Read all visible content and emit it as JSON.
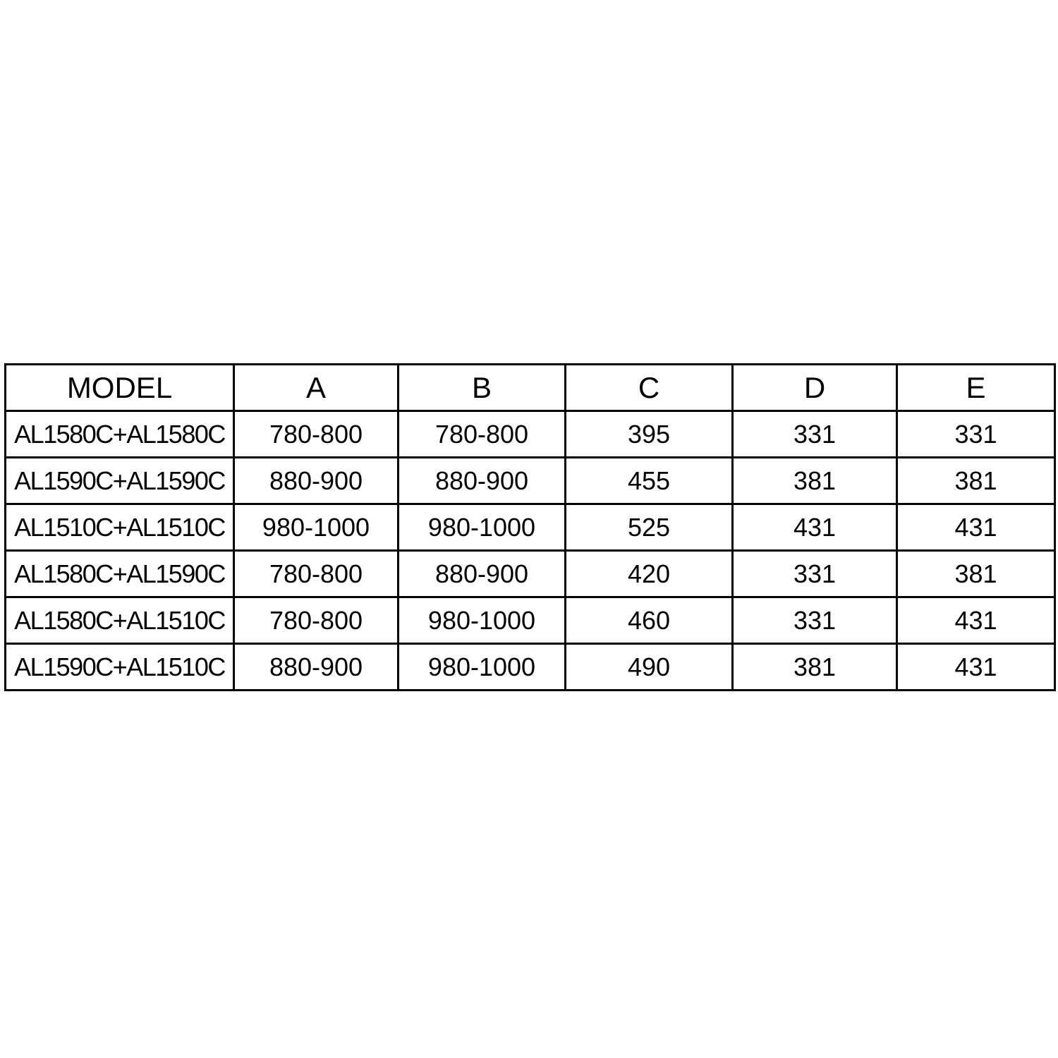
{
  "page": {
    "background": "#ffffff"
  },
  "colors": {
    "border": "#000000",
    "text": "#000000",
    "cell_background": "#ffffff"
  },
  "spec_table": {
    "headers": [
      "MODEL",
      "A",
      "B",
      "C",
      "D",
      "E"
    ],
    "rows": [
      [
        "AL1580C+AL1580C",
        "780-800",
        "780-800",
        "395",
        "331",
        "331"
      ],
      [
        "AL1590C+AL1590C",
        "880-900",
        "880-900",
        "455",
        "381",
        "381"
      ],
      [
        "AL1510C+AL1510C",
        "980-1000",
        "980-1000",
        "525",
        "431",
        "431"
      ],
      [
        "AL1580C+AL1590C",
        "780-800",
        "880-900",
        "420",
        "331",
        "381"
      ],
      [
        "AL1580C+AL1510C",
        "780-800",
        "980-1000",
        "460",
        "331",
        "431"
      ],
      [
        "AL1590C+AL1510C",
        "880-900",
        "980-1000",
        "490",
        "381",
        "431"
      ]
    ]
  }
}
